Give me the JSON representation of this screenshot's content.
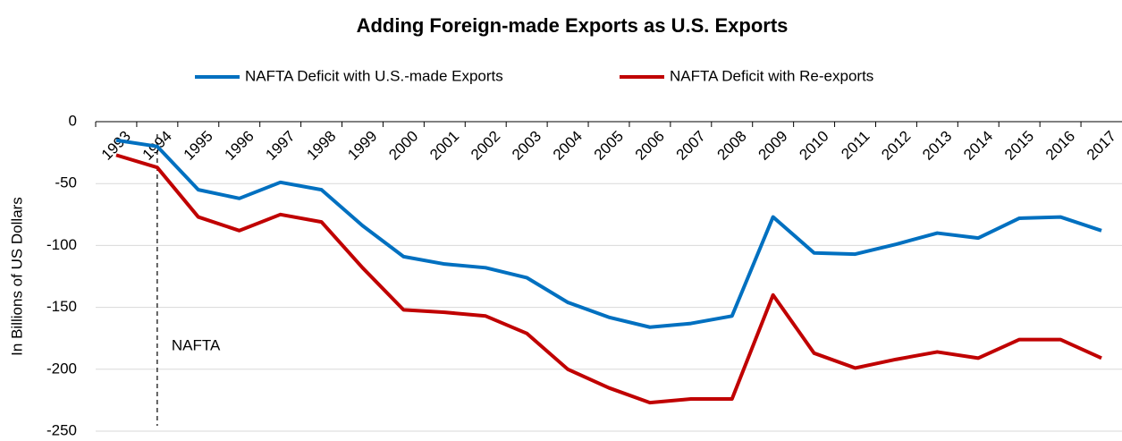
{
  "chart_data": {
    "type": "line",
    "title": "Adding Foreign-made Exports as U.S. Exports",
    "y_label": "In Billions of US Dollars",
    "annotation": "NAFTA",
    "categories": [
      "1993",
      "1994",
      "1995",
      "1996",
      "1997",
      "1998",
      "1999",
      "2000",
      "2001",
      "2002",
      "2003",
      "2004",
      "2005",
      "2006",
      "2007",
      "2008",
      "2009",
      "2010",
      "2011",
      "2012",
      "2013",
      "2014",
      "2015",
      "2016",
      "2017"
    ],
    "series": [
      {
        "name": "NAFTA Deficit with U.S.-made Exports",
        "color": "#0070c0",
        "values": [
          -15,
          -20,
          -55,
          -62,
          -49,
          -55,
          -84,
          -109,
          -115,
          -118,
          -126,
          -146,
          -158,
          -166,
          -163,
          -157,
          -77,
          -106,
          -107,
          -99,
          -90,
          -94,
          -78,
          -77,
          -88
        ]
      },
      {
        "name": "NAFTA Deficit with Re-exports",
        "color": "#c00000",
        "values": [
          -27,
          -37,
          -77,
          -88,
          -75,
          -81,
          -118,
          -152,
          -154,
          -157,
          -171,
          -200,
          -215,
          -227,
          -224,
          -224,
          -140,
          -187,
          -199,
          -192,
          -186,
          -191,
          -176,
          -176,
          -191
        ]
      }
    ],
    "ylim": [
      -250,
      0
    ],
    "yticks": [
      0,
      -50,
      -100,
      -150,
      -200,
      -250
    ],
    "grid": true,
    "legend": "top"
  }
}
